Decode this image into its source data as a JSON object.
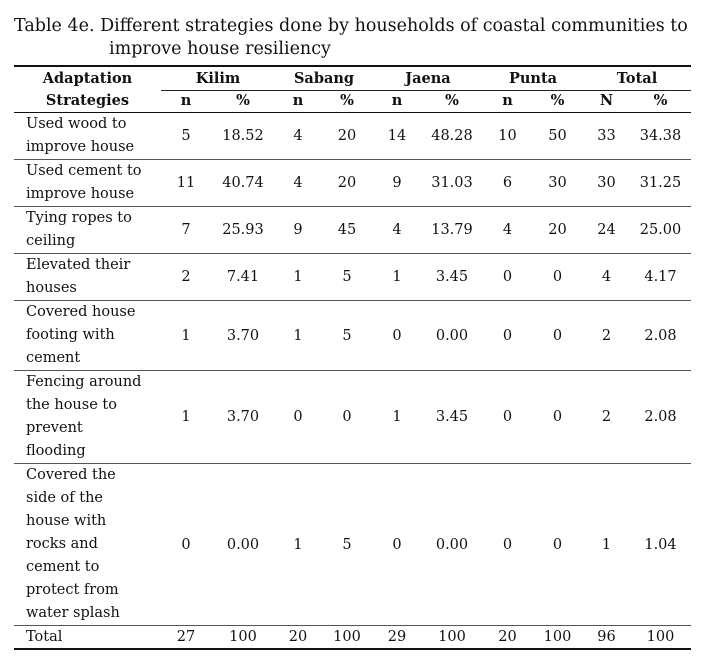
{
  "caption": {
    "line1": "Table 4e. Different strategies done by households of coastal communities to",
    "line2": "improve house resiliency"
  },
  "table": {
    "header_col1": [
      "Adaptation",
      "Strategies"
    ],
    "groups": [
      "Kilim",
      "Sabang",
      "Jaena",
      "Punta",
      "Total"
    ],
    "subheaders": [
      "n",
      "%",
      "n",
      "%",
      "n",
      "%",
      "n",
      "%",
      "N",
      "%"
    ],
    "rows": [
      {
        "label": [
          "Used wood to",
          "improve house"
        ],
        "values": [
          "5",
          "18.52",
          "4",
          "20",
          "14",
          "48.28",
          "10",
          "50",
          "33",
          "34.38"
        ]
      },
      {
        "label": [
          "Used cement to",
          "improve house"
        ],
        "values": [
          "11",
          "40.74",
          "4",
          "20",
          "9",
          "31.03",
          "6",
          "30",
          "30",
          "31.25"
        ]
      },
      {
        "label": [
          "Tying ropes to",
          "ceiling"
        ],
        "values": [
          "7",
          "25.93",
          "9",
          "45",
          "4",
          "13.79",
          "4",
          "20",
          "24",
          "25.00"
        ]
      },
      {
        "label": [
          "Elevated their",
          "houses"
        ],
        "values": [
          "2",
          "7.41",
          "1",
          "5",
          "1",
          "3.45",
          "0",
          "0",
          "4",
          "4.17"
        ]
      },
      {
        "label": [
          "Covered house",
          "footing with",
          "cement"
        ],
        "values": [
          "1",
          "3.70",
          "1",
          "5",
          "0",
          "0.00",
          "0",
          "0",
          "2",
          "2.08"
        ]
      },
      {
        "label": [
          "Fencing around",
          "the house to",
          "prevent",
          "flooding"
        ],
        "values": [
          "1",
          "3.70",
          "0",
          "0",
          "1",
          "3.45",
          "0",
          "0",
          "2",
          "2.08"
        ]
      },
      {
        "label": [
          "Covered the",
          "side of the",
          "house with",
          "rocks and",
          "cement to",
          "protect from",
          "water splash"
        ],
        "values": [
          "0",
          "0.00",
          "1",
          "5",
          "0",
          "0.00",
          "0",
          "0",
          "1",
          "1.04"
        ]
      }
    ],
    "total": {
      "label": "Total",
      "values": [
        "27",
        "100",
        "20",
        "100",
        "29",
        "100",
        "20",
        "100",
        "96",
        "100"
      ]
    }
  }
}
